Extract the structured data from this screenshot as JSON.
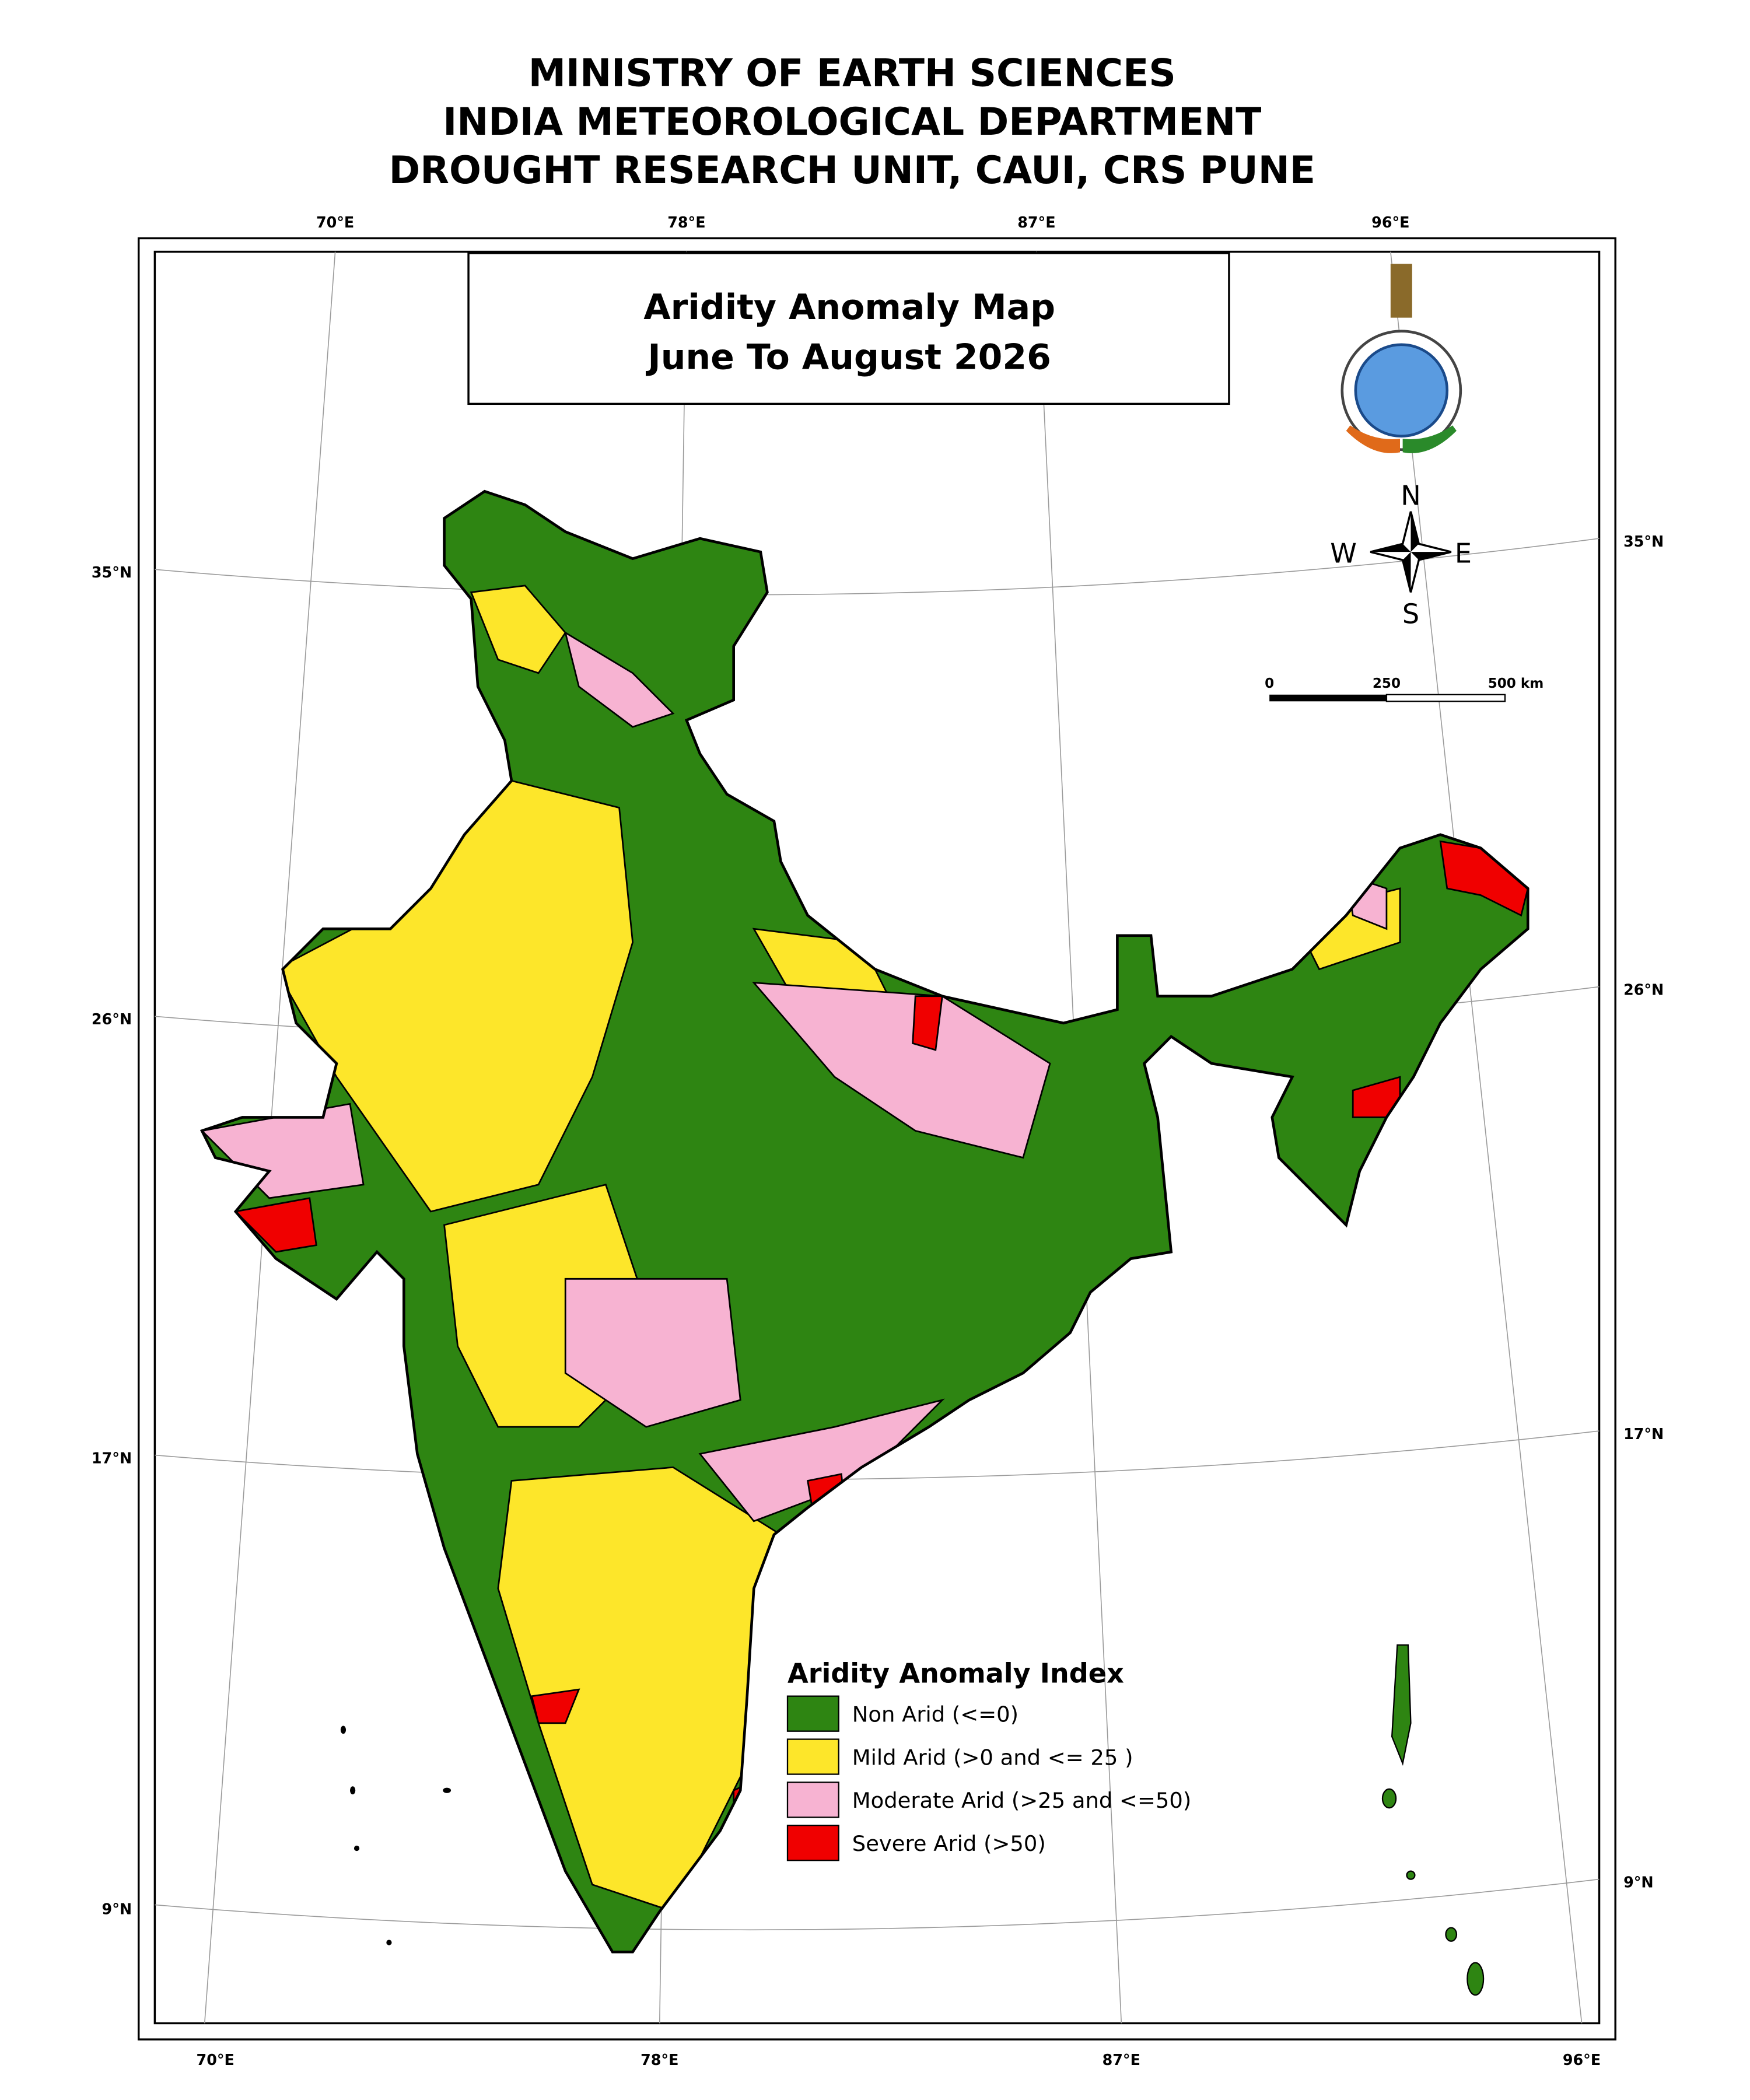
{
  "header": {
    "lines": [
      "MINISTRY OF EARTH SCIENCES",
      "INDIA METEOROLOGICAL DEPARTMENT",
      "DROUGHT RESEARCH UNIT, CAUI, CRS PUNE"
    ]
  },
  "map": {
    "title": "Aridity Anomaly Map",
    "subtitle": "June To August  2026",
    "top_labels": [
      "70°E",
      "78°E",
      "87°E",
      "96°E"
    ],
    "bottom_labels": [
      "70°E",
      "78°E",
      "87°E",
      "96°E"
    ],
    "left_labels": [
      "35°N",
      "26°N",
      "17°N",
      "9°N"
    ],
    "right_labels": [
      "35°N",
      "26°N",
      "17°N",
      "9°N"
    ],
    "compass": {
      "north": "N",
      "east": "E",
      "south": "S",
      "west": "W"
    },
    "scale_bar": {
      "labels": [
        "0",
        "250",
        "500 km"
      ]
    },
    "legend": {
      "title": "Aridity Anomaly Index",
      "items": [
        {
          "label": "Non Arid (<=0)",
          "color": "#2e8512"
        },
        {
          "label": "Mild Arid (>0 and <= 25 )",
          "color": "#fde62a"
        },
        {
          "label": "Moderate Arid (>25 and <=50)",
          "color": "#f7b3d2"
        },
        {
          "label": "Severe Arid (>50)",
          "color": "#f00000"
        }
      ]
    }
  }
}
